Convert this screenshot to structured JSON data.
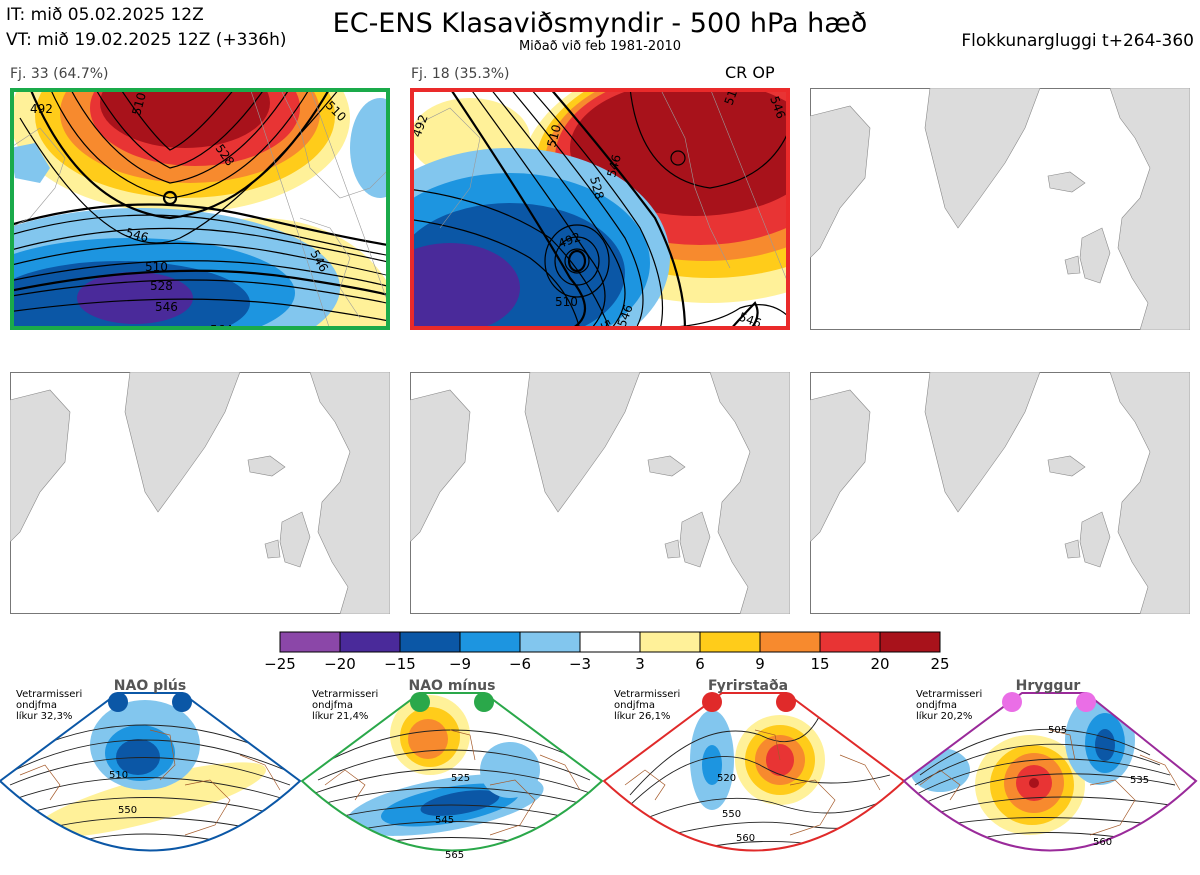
{
  "header": {
    "it_line": "IT: mið 05.02.2025 12Z",
    "vt_line": "VT: mið 19.02.2025 12Z  (+336h)",
    "title": "EC-ENS Klasaviðsmyndir - 500 hPa hæð",
    "subtitle": "Miðað við feb 1981-2010",
    "window": "Flokkunargluggi t+264-360"
  },
  "panels": [
    {
      "label": "Fj. 33 (64.7%)",
      "border_color": "#1aaa4a",
      "contours": [
        "492",
        "510",
        "510",
        "528",
        "546",
        "546",
        "510",
        "528",
        "546",
        "564"
      ]
    },
    {
      "label": "Fj. 18 (35.3%)",
      "border_color": "#ea2a2a",
      "marker": "CR OP",
      "contours": [
        "492",
        "510",
        "528",
        "546",
        "510",
        "528",
        "546",
        "492",
        "546",
        "510",
        "546"
      ]
    },
    {
      "label": ""
    },
    {
      "label": ""
    },
    {
      "label": ""
    },
    {
      "label": ""
    }
  ],
  "colorbar": {
    "ticks": [
      "−25",
      "−20",
      "−15",
      "−9",
      "−6",
      "−3",
      "3",
      "6",
      "9",
      "15",
      "20",
      "25"
    ],
    "colors": [
      "#8b47a8",
      "#4a2a9a",
      "#0b57a6",
      "#1d95e0",
      "#82c6ee",
      "#ffffff",
      "#fff199",
      "#ffcc1a",
      "#f78a2e",
      "#e83434",
      "#a8121b"
    ]
  },
  "regimes": [
    {
      "name": "NAO plús",
      "color": "#0b57a6",
      "info": [
        "Vetrarmisseri",
        "ondjfma",
        "líkur 32,3%"
      ],
      "contours": [
        "510",
        "550"
      ]
    },
    {
      "name": "NAO mínus",
      "color": "#2aa84a",
      "info": [
        "Vetrarmisseri",
        "ondjfma",
        "líkur 21,4%"
      ],
      "contours": [
        "525",
        "545",
        "565"
      ]
    },
    {
      "name": "Fyrirstaða",
      "color": "#e02a2a",
      "info": [
        "Vetrarmisseri",
        "ondjfma",
        "líkur 26,1%"
      ],
      "contours": [
        "520",
        "550",
        "560"
      ]
    },
    {
      "name": "Hryggur",
      "color": "#ea6ee6",
      "info": [
        "Vetrarmisseri",
        "ondjfma",
        "líkur 20,2%"
      ],
      "contours": [
        "505",
        "535",
        "560"
      ]
    }
  ]
}
